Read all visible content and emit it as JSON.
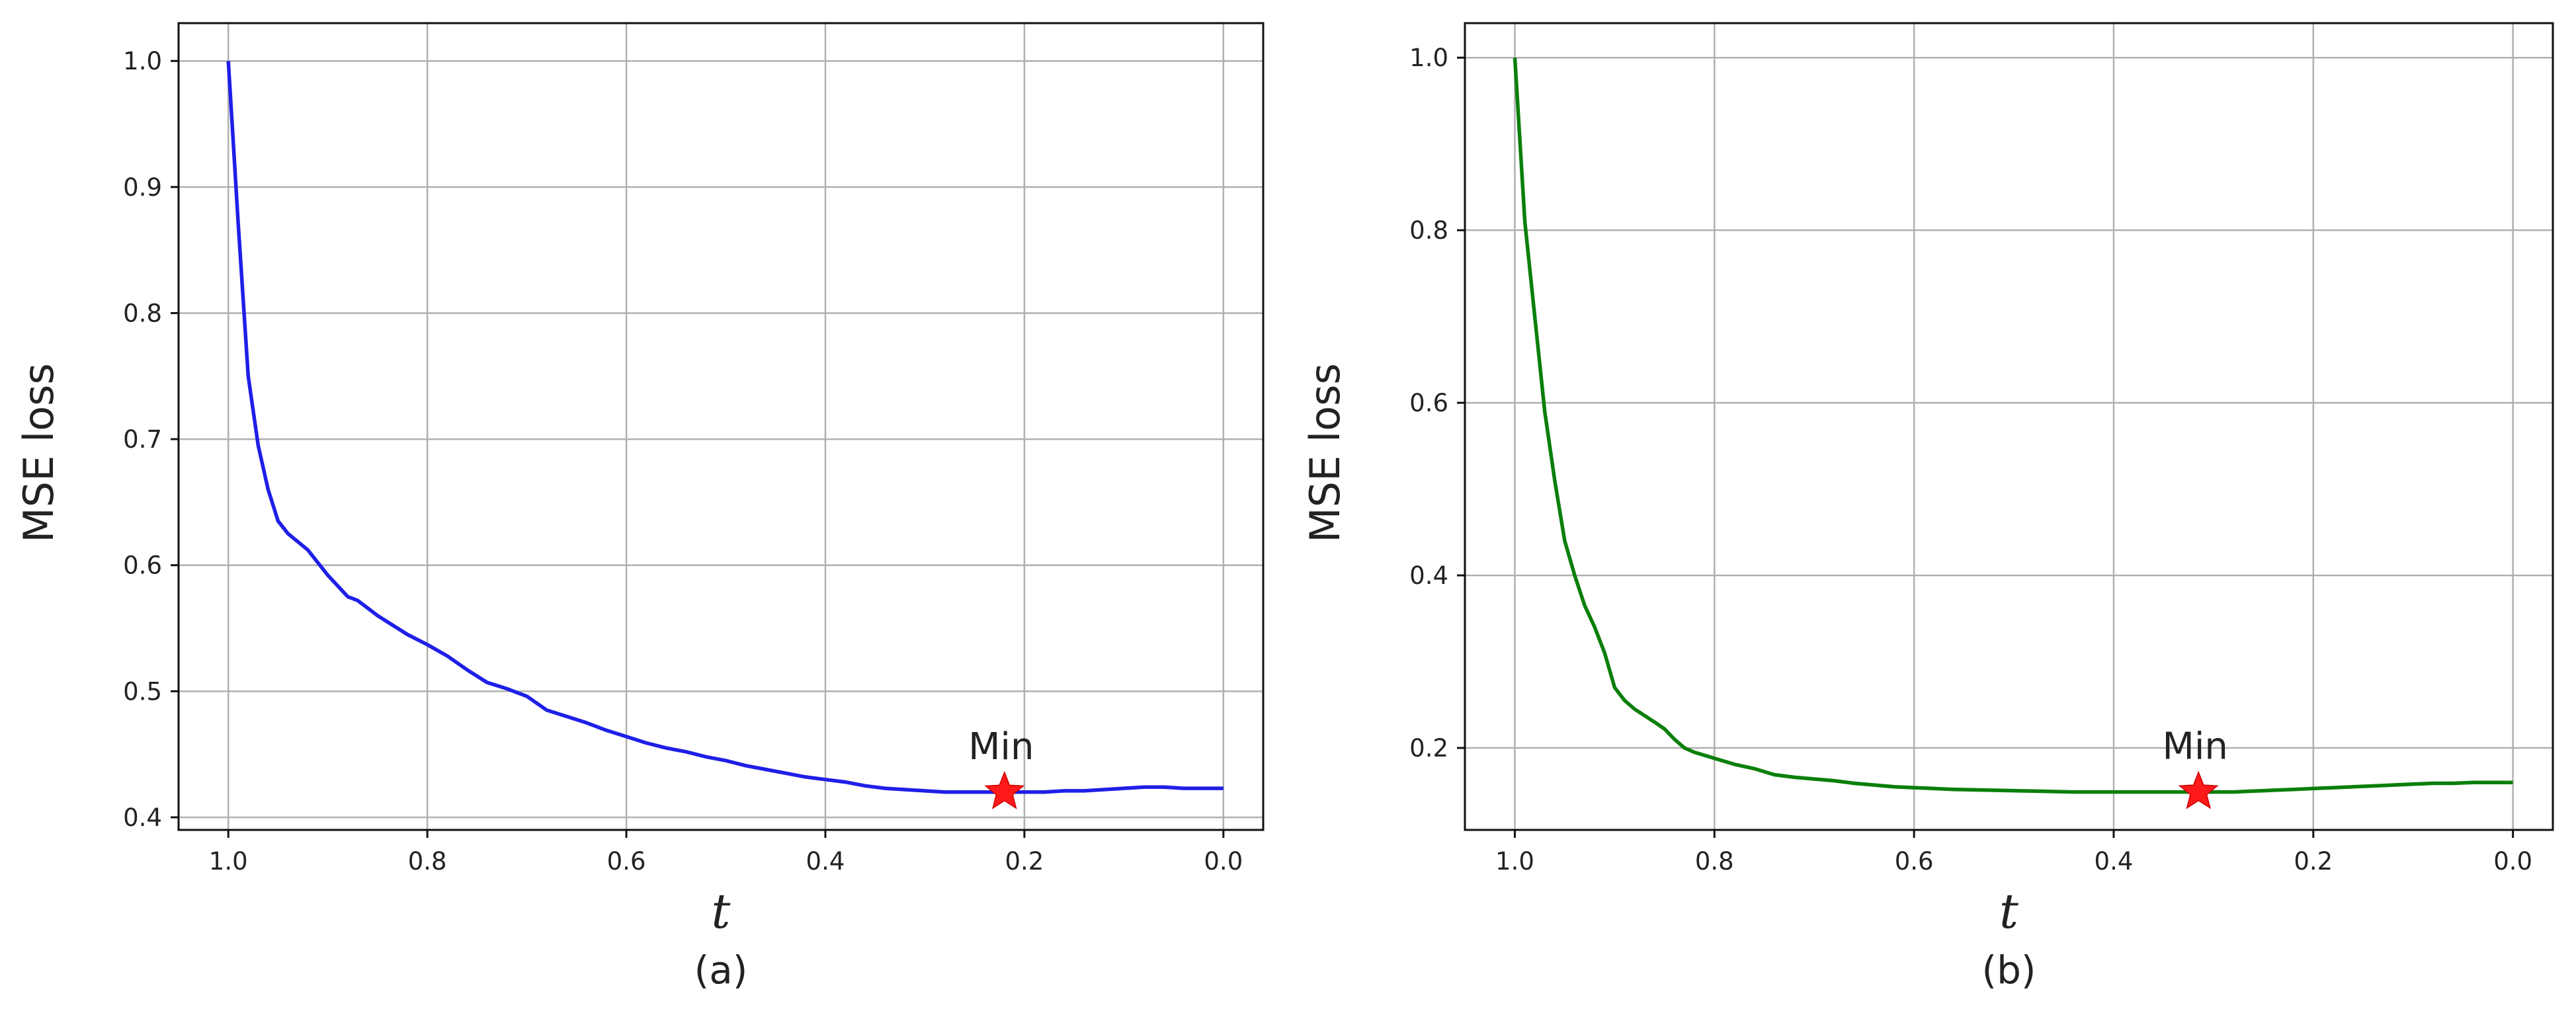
{
  "chart_data": [
    {
      "type": "line",
      "panel_label": "(a)",
      "xlabel": "t",
      "ylabel": "MSE loss",
      "xlim": [
        1.05,
        -0.04
      ],
      "ylim": [
        0.39,
        1.03
      ],
      "x_ticks": [
        1.0,
        0.8,
        0.6,
        0.4,
        0.2,
        0.0
      ],
      "x_tick_labels": [
        "1.0",
        "0.8",
        "0.6",
        "0.4",
        "0.2",
        "0.0"
      ],
      "y_ticks": [
        0.4,
        0.5,
        0.6,
        0.7,
        0.8,
        0.9,
        1.0
      ],
      "y_tick_labels": [
        "0.4",
        "0.5",
        "0.6",
        "0.7",
        "0.8",
        "0.9",
        "1.0"
      ],
      "grid": true,
      "series": [
        {
          "color": "#1f1fe8",
          "x": [
            1.0,
            0.99,
            0.98,
            0.97,
            0.96,
            0.95,
            0.94,
            0.92,
            0.9,
            0.88,
            0.87,
            0.86,
            0.85,
            0.84,
            0.82,
            0.8,
            0.78,
            0.76,
            0.74,
            0.72,
            0.7,
            0.68,
            0.66,
            0.64,
            0.62,
            0.6,
            0.58,
            0.56,
            0.54,
            0.52,
            0.5,
            0.48,
            0.46,
            0.44,
            0.42,
            0.4,
            0.38,
            0.36,
            0.34,
            0.32,
            0.3,
            0.28,
            0.26,
            0.24,
            0.22,
            0.2,
            0.18,
            0.16,
            0.14,
            0.12,
            0.1,
            0.08,
            0.06,
            0.04,
            0.02,
            0.0
          ],
          "y": [
            1.0,
            0.87,
            0.75,
            0.695,
            0.66,
            0.635,
            0.625,
            0.612,
            0.592,
            0.575,
            0.572,
            0.566,
            0.56,
            0.555,
            0.545,
            0.537,
            0.528,
            0.517,
            0.507,
            0.502,
            0.496,
            0.485,
            0.48,
            0.475,
            0.469,
            0.464,
            0.459,
            0.455,
            0.452,
            0.448,
            0.445,
            0.441,
            0.438,
            0.435,
            0.432,
            0.43,
            0.428,
            0.425,
            0.423,
            0.422,
            0.421,
            0.42,
            0.42,
            0.42,
            0.42,
            0.42,
            0.42,
            0.421,
            0.421,
            0.422,
            0.423,
            0.424,
            0.424,
            0.423,
            0.423,
            0.423
          ]
        }
      ],
      "marker": {
        "x": 0.22,
        "y": 0.42,
        "label": "Min",
        "color": "#ff1a1a"
      }
    },
    {
      "type": "line",
      "panel_label": "(b)",
      "xlabel": "t",
      "ylabel": "MSE loss",
      "xlim": [
        1.05,
        -0.04
      ],
      "ylim": [
        0.105,
        1.04
      ],
      "x_ticks": [
        1.0,
        0.8,
        0.6,
        0.4,
        0.2,
        0.0
      ],
      "x_tick_labels": [
        "1.0",
        "0.8",
        "0.6",
        "0.4",
        "0.2",
        "0.0"
      ],
      "y_ticks": [
        0.2,
        0.4,
        0.6,
        0.8,
        1.0
      ],
      "y_tick_labels": [
        "0.2",
        "0.4",
        "0.6",
        "0.8",
        "1.0"
      ],
      "grid": true,
      "series": [
        {
          "color": "#0a7f0a",
          "x": [
            1.0,
            0.99,
            0.98,
            0.97,
            0.96,
            0.95,
            0.94,
            0.93,
            0.92,
            0.91,
            0.9,
            0.89,
            0.88,
            0.86,
            0.85,
            0.84,
            0.83,
            0.82,
            0.8,
            0.78,
            0.76,
            0.74,
            0.72,
            0.7,
            0.68,
            0.66,
            0.64,
            0.62,
            0.6,
            0.56,
            0.52,
            0.48,
            0.44,
            0.4,
            0.36,
            0.32,
            0.3,
            0.28,
            0.26,
            0.24,
            0.22,
            0.2,
            0.18,
            0.16,
            0.14,
            0.12,
            0.1,
            0.08,
            0.06,
            0.04,
            0.02,
            0.0
          ],
          "y": [
            1.0,
            0.81,
            0.7,
            0.59,
            0.51,
            0.44,
            0.4,
            0.365,
            0.34,
            0.31,
            0.27,
            0.255,
            0.245,
            0.23,
            0.222,
            0.21,
            0.2,
            0.195,
            0.188,
            0.181,
            0.176,
            0.169,
            0.166,
            0.164,
            0.162,
            0.159,
            0.157,
            0.155,
            0.154,
            0.152,
            0.151,
            0.15,
            0.149,
            0.149,
            0.149,
            0.149,
            0.149,
            0.149,
            0.15,
            0.151,
            0.152,
            0.153,
            0.154,
            0.155,
            0.156,
            0.157,
            0.158,
            0.159,
            0.159,
            0.16,
            0.16,
            0.16
          ]
        }
      ],
      "marker": {
        "x": 0.315,
        "y": 0.149,
        "label": "Min",
        "color": "#ff1a1a"
      }
    }
  ]
}
